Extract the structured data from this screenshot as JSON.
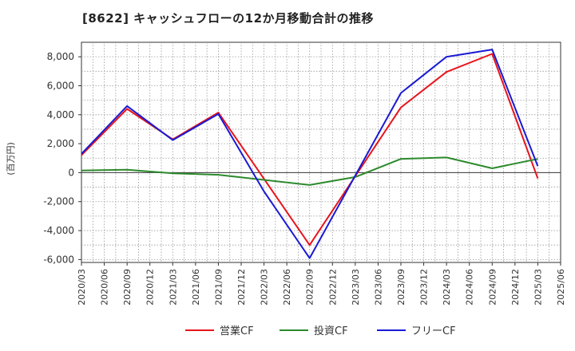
{
  "chart_data": {
    "type": "line",
    "title": "[8622]  キャッシュフローの12か月移動合計の推移",
    "ylabel": "(百万円)",
    "xlabel": "",
    "ylim": [
      -6200,
      9000
    ],
    "yticks": [
      -6000,
      -4000,
      -2000,
      0,
      2000,
      4000,
      6000,
      8000
    ],
    "ytick_labels": [
      "-6,000",
      "-4,000",
      "-2,000",
      "0",
      "2,000",
      "4,000",
      "6,000",
      "8,000"
    ],
    "categories": [
      "2020/03",
      "2020/06",
      "2020/09",
      "2020/12",
      "2021/03",
      "2021/06",
      "2021/09",
      "2021/12",
      "2022/03",
      "2022/06",
      "2022/09",
      "2022/12",
      "2023/03",
      "2023/06",
      "2023/09",
      "2023/12",
      "2024/03",
      "2024/06",
      "2024/09",
      "2024/12",
      "2025/03",
      "2025/06"
    ],
    "grid": true,
    "legend_position": "bottom",
    "series": [
      {
        "name": "営業CF",
        "color": "#e8141c",
        "x": [
          "2020/03",
          "2020/09",
          "2021/03",
          "2021/09",
          "2022/09",
          "2023/09",
          "2024/03",
          "2024/09",
          "2025/03"
        ],
        "values": [
          1200,
          4400,
          2300,
          4150,
          -5000,
          4500,
          6950,
          8200,
          -400
        ]
      },
      {
        "name": "投資CF",
        "color": "#2c8a2c",
        "x": [
          "2020/03",
          "2020/09",
          "2021/03",
          "2021/09",
          "2022/09",
          "2023/03",
          "2023/09",
          "2024/03",
          "2024/09",
          "2025/03"
        ],
        "values": [
          150,
          200,
          -50,
          -150,
          -850,
          -300,
          950,
          1050,
          300,
          950
        ]
      },
      {
        "name": "フリーCF",
        "color": "#1a1ad4",
        "x": [
          "2020/03",
          "2020/09",
          "2021/03",
          "2021/09",
          "2022/03",
          "2022/09",
          "2023/09",
          "2024/03",
          "2024/09",
          "2025/03"
        ],
        "values": [
          1300,
          4600,
          2250,
          4050,
          -1300,
          -5900,
          5500,
          8000,
          8500,
          450
        ]
      }
    ]
  }
}
